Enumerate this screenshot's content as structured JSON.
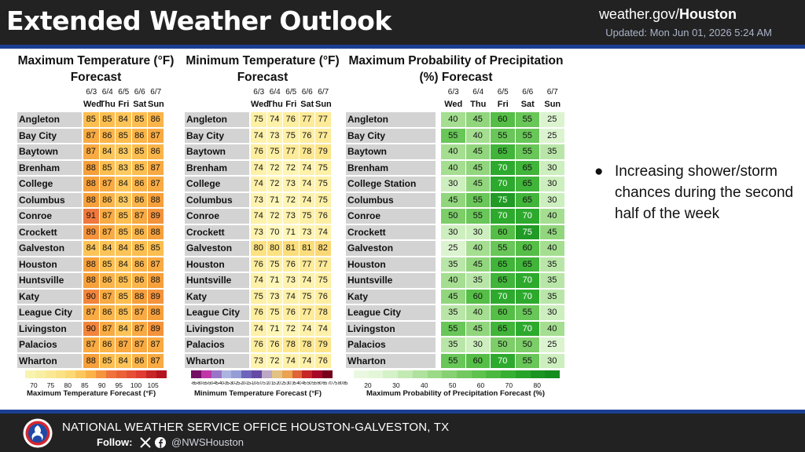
{
  "header": {
    "title": "Extended Weather Outlook",
    "site_prefix": "weather.gov/",
    "site_city": "Houston",
    "updated": "Updated: Mon Jun 01, 2026 5:24 AM"
  },
  "tables": {
    "dates": [
      "6/3",
      "6/4",
      "6/5",
      "6/6",
      "6/7"
    ],
    "days": [
      "Wed",
      "Thu",
      "Fri",
      "Sat",
      "Sun"
    ],
    "cities": [
      "Angleton",
      "Bay City",
      "Baytown",
      "Brenham",
      "College Station",
      "Columbus",
      "Conroe",
      "Crockett",
      "Galveston",
      "Houston",
      "Huntsville",
      "Katy",
      "League City",
      "Livingston",
      "Palacios",
      "Wharton"
    ],
    "max_temp": {
      "title_line1": "Maximum Temperature (°F)",
      "title_line2": "Forecast",
      "colorbar_label": "Maximum Temperature Forecast (°F)",
      "colorbar_ticks": [
        "70",
        "75",
        "80",
        "85",
        "90",
        "95",
        "100",
        "105"
      ],
      "values": [
        [
          85,
          85,
          84,
          85,
          86
        ],
        [
          87,
          86,
          85,
          86,
          87
        ],
        [
          87,
          84,
          83,
          85,
          86
        ],
        [
          88,
          85,
          83,
          85,
          87
        ],
        [
          88,
          87,
          84,
          86,
          87
        ],
        [
          88,
          86,
          83,
          86,
          88
        ],
        [
          91,
          87,
          85,
          87,
          89
        ],
        [
          89,
          87,
          85,
          86,
          88
        ],
        [
          84,
          84,
          84,
          85,
          85
        ],
        [
          88,
          85,
          84,
          86,
          87
        ],
        [
          88,
          86,
          85,
          86,
          88
        ],
        [
          90,
          87,
          85,
          88,
          89
        ],
        [
          87,
          86,
          85,
          87,
          88
        ],
        [
          90,
          87,
          84,
          87,
          89
        ],
        [
          87,
          86,
          87,
          87,
          87
        ],
        [
          88,
          85,
          84,
          86,
          87
        ]
      ]
    },
    "min_temp": {
      "title_line1": "Minimum Temperature (°F)",
      "title_line2": "Forecast",
      "colorbar_label": "Minimum Temperature Forecast (°F)",
      "colorbar_ticks": "-65-60-55-50-45-40-35-30-25-20-15-10-5 0 5 10 15 20 25 30 35 40 45 50 55 60 65 70 75 80 85 90 95 100 105 110",
      "values": [
        [
          75,
          74,
          76,
          77,
          77
        ],
        [
          74,
          73,
          75,
          76,
          77
        ],
        [
          76,
          75,
          77,
          78,
          79
        ],
        [
          74,
          72,
          72,
          74,
          75
        ],
        [
          74,
          72,
          73,
          74,
          75
        ],
        [
          73,
          71,
          72,
          74,
          75
        ],
        [
          74,
          72,
          73,
          75,
          76
        ],
        [
          73,
          70,
          71,
          73,
          74
        ],
        [
          80,
          80,
          81,
          81,
          82
        ],
        [
          76,
          75,
          76,
          77,
          77
        ],
        [
          74,
          71,
          73,
          74,
          75
        ],
        [
          75,
          73,
          74,
          75,
          76
        ],
        [
          76,
          75,
          76,
          77,
          78
        ],
        [
          74,
          71,
          72,
          74,
          74
        ],
        [
          76,
          76,
          78,
          78,
          79
        ],
        [
          73,
          72,
          74,
          74,
          76
        ]
      ]
    },
    "pop": {
      "title_line1": "Maximum Probability of Precipitation",
      "title_line2": "(%) Forecast",
      "colorbar_label": "Maximum Probability of Precipitation Forecast (%)",
      "colorbar_ticks": [
        "20",
        "30",
        "40",
        "50",
        "60",
        "70",
        "80"
      ],
      "values": [
        [
          40,
          45,
          60,
          55,
          25
        ],
        [
          55,
          40,
          55,
          55,
          25
        ],
        [
          40,
          45,
          65,
          55,
          35
        ],
        [
          40,
          45,
          70,
          65,
          30
        ],
        [
          30,
          45,
          70,
          65,
          30
        ],
        [
          45,
          55,
          75,
          65,
          30
        ],
        [
          50,
          55,
          70,
          70,
          40
        ],
        [
          30,
          30,
          60,
          75,
          45
        ],
        [
          25,
          40,
          55,
          60,
          40
        ],
        [
          35,
          45,
          65,
          65,
          35
        ],
        [
          40,
          35,
          65,
          70,
          35
        ],
        [
          45,
          60,
          70,
          70,
          35
        ],
        [
          35,
          40,
          60,
          55,
          30
        ],
        [
          55,
          45,
          65,
          70,
          40
        ],
        [
          35,
          30,
          50,
          50,
          25
        ],
        [
          55,
          60,
          70,
          55,
          30
        ]
      ]
    }
  },
  "bullet": {
    "symbol": "●",
    "text": "Increasing shower/storm chances during the second half of the week"
  },
  "footer": {
    "office": "NATIONAL WEATHER SERVICE OFFICE HOUSTON-GALVESTON, TX",
    "follow": "Follow:",
    "handle": "@NWSHouston",
    "icons": [
      "x-icon",
      "facebook-icon"
    ]
  },
  "colors": {
    "header_bg": "#222222",
    "band_blue": "#1b3f93",
    "city_gray": "#d3d3d3",
    "weekend_col": "#e9e9e9"
  }
}
